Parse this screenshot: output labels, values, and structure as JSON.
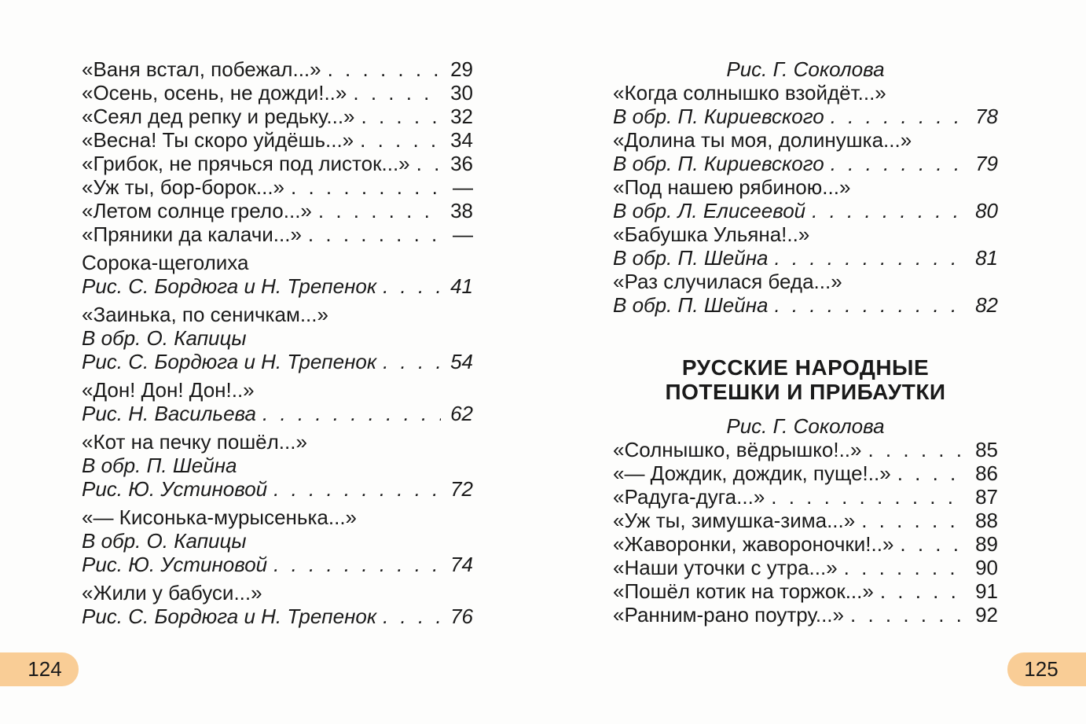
{
  "colors": {
    "folio_badge": "#f9cd96",
    "text": "#1a1a1a",
    "background": "#fdfdfc"
  },
  "page_left": {
    "folio": "124",
    "items": [
      {
        "type": "entry",
        "text": "«Ваня встал, побежал...»",
        "page": "29"
      },
      {
        "type": "entry",
        "text": "«Осень, осень, не дожди!..»",
        "page": "30"
      },
      {
        "type": "entry",
        "text": "«Сеял дед репку и редьку...»",
        "page": "32"
      },
      {
        "type": "entry",
        "text": "«Весна! Ты скоро уйдёшь...»",
        "page": "34"
      },
      {
        "type": "entry",
        "text": "«Грибок, не прячься под листок...»",
        "page": "36"
      },
      {
        "type": "entry",
        "text": "«Уж ты, бор-борок...»",
        "page": "—"
      },
      {
        "type": "entry",
        "text": "«Летом солнце грело...»",
        "page": "38"
      },
      {
        "type": "entry",
        "text": "«Пряники да калачи...»",
        "page": "—"
      },
      {
        "type": "entry",
        "text": "Сорока-щеголиха",
        "page": null,
        "group": true
      },
      {
        "type": "credit",
        "text": "Рис. С. Бордюга и Н. Трепенок",
        "page": "41"
      },
      {
        "type": "entry",
        "text": "«Заинька, по сеничкам...»",
        "page": null,
        "group": true
      },
      {
        "type": "credit",
        "text": "В обр. О. Капицы",
        "page": null
      },
      {
        "type": "credit",
        "text": "Рис. С. Бордюга и Н. Трепенок",
        "page": "54"
      },
      {
        "type": "entry",
        "text": "«Дон! Дон! Дон!..»",
        "page": null,
        "group": true
      },
      {
        "type": "credit",
        "text": "Рис. Н. Васильева",
        "page": "62"
      },
      {
        "type": "entry",
        "text": "«Кот на печку пошёл...»",
        "page": null,
        "group": true
      },
      {
        "type": "credit",
        "text": "В обр. П. Шейна",
        "page": null
      },
      {
        "type": "credit",
        "text": "Рис. Ю. Устиновой",
        "page": "72"
      },
      {
        "type": "entry",
        "text": "«— Кисонька-мурысенька...»",
        "page": null,
        "group": true
      },
      {
        "type": "credit",
        "text": "В обр. О. Капицы",
        "page": null
      },
      {
        "type": "credit",
        "text": "Рис. Ю. Устиновой",
        "page": "74"
      },
      {
        "type": "entry",
        "text": "«Жили у бабуси...»",
        "page": null,
        "group": true
      },
      {
        "type": "credit",
        "text": "Рис. С. Бордюга и Н. Трепенок",
        "page": "76"
      }
    ]
  },
  "page_right": {
    "folio": "125",
    "items": [
      {
        "type": "credit-center",
        "text": "Рис. Г. Соколова"
      },
      {
        "type": "entry",
        "text": "«Когда солнышко взойдёт...»",
        "page": null
      },
      {
        "type": "credit",
        "text": "В обр. П. Кириевского",
        "page": "78"
      },
      {
        "type": "entry",
        "text": "«Долина ты моя, долинушка...»",
        "page": null
      },
      {
        "type": "credit",
        "text": "В обр. П. Кириевского",
        "page": "79"
      },
      {
        "type": "entry",
        "text": "«Под нашею рябиною...»",
        "page": null
      },
      {
        "type": "credit",
        "text": "В обр. Л. Елисеевой",
        "page": "80"
      },
      {
        "type": "entry",
        "text": "«Бабушка Ульяна!..»",
        "page": null
      },
      {
        "type": "credit",
        "text": "В обр. П. Шейна",
        "page": "81"
      },
      {
        "type": "entry",
        "text": "«Раз случилася беда...»",
        "page": null
      },
      {
        "type": "credit",
        "text": "В обр. П. Шейна",
        "page": "82"
      },
      {
        "type": "heading",
        "text": "РУССКИЕ НАРОДНЫЕ\nПОТЕШКИ И ПРИБАУТКИ"
      },
      {
        "type": "credit-center",
        "text": "Рис. Г. Соколова"
      },
      {
        "type": "entry",
        "text": "«Солнышко, вёдрышко!..»",
        "page": "85"
      },
      {
        "type": "entry",
        "text": "«— Дождик, дождик, пуще!..»",
        "page": "86"
      },
      {
        "type": "entry",
        "text": "«Радуга-дуга...»",
        "page": "87"
      },
      {
        "type": "entry",
        "text": "«Уж ты, зимушка-зима...»",
        "page": "88"
      },
      {
        "type": "entry",
        "text": "«Жаворонки, жавороночки!..»",
        "page": "89"
      },
      {
        "type": "entry",
        "text": "«Наши уточки с утра...»",
        "page": "90"
      },
      {
        "type": "entry",
        "text": "«Пошёл котик на торжок...»",
        "page": "91"
      },
      {
        "type": "entry",
        "text": "«Ранним-рано поутру...»",
        "page": "92"
      }
    ]
  }
}
